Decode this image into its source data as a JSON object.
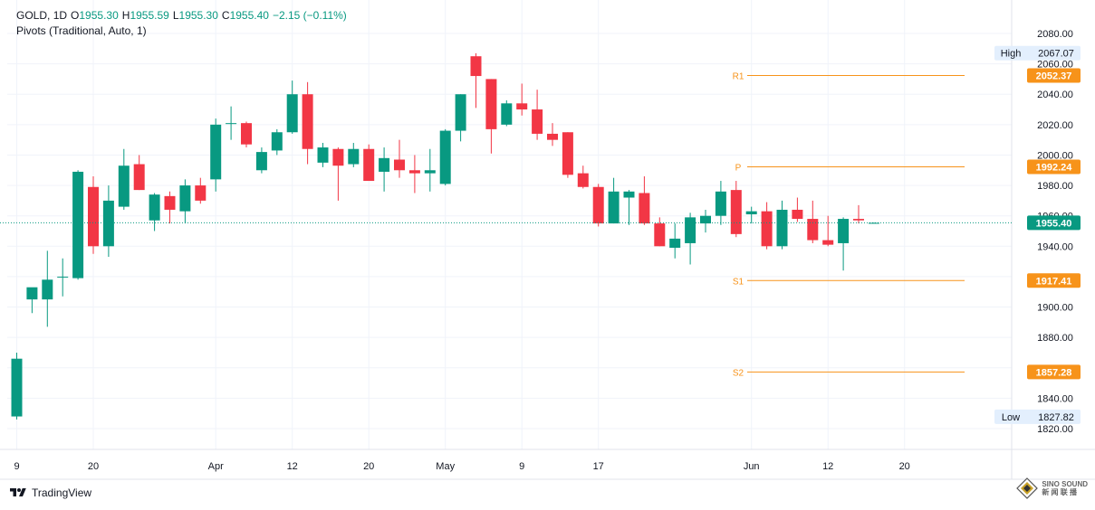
{
  "legend": {
    "symbol": "GOLD",
    "interval": "1D",
    "open_label": "O",
    "open": "1955.30",
    "high_label": "H",
    "high": "1955.59",
    "low_label": "L",
    "low": "1955.30",
    "close_label": "C",
    "close": "1955.40",
    "change": "−2.15 (−0.11%)",
    "indicator": "Pivots (Traditional, Auto, 1)"
  },
  "brand": {
    "name": "TradingView"
  },
  "watermark": {
    "line1": "SINO SOUND",
    "line2": "新 闻 联 播"
  },
  "colors": {
    "up": "#089981",
    "down": "#f23645",
    "pivot": "#f7931a",
    "grid": "#f0f3fa",
    "current_price": "#089981",
    "axis_text": "#131722"
  },
  "chart_data": {
    "type": "candlestick",
    "ylim": [
      1810,
      2090
    ],
    "y_ticks": [
      1820,
      1840,
      1860,
      1880,
      1900,
      1920,
      1940,
      1960,
      1980,
      2000,
      2020,
      2040,
      2060,
      2080
    ],
    "y_tick_labels": [
      "1820.00",
      "1840.00",
      "1860.00",
      "1880.00",
      "1900.00",
      "1920.00",
      "1940.00",
      "1960.00",
      "1980.00",
      "2000.00",
      "2020.00",
      "2040.00",
      "2060.00",
      "2080.00"
    ],
    "x_ticks": [
      {
        "label": "9",
        "index": 0
      },
      {
        "label": "20",
        "index": 5
      },
      {
        "label": "Apr",
        "index": 13
      },
      {
        "label": "12",
        "index": 18
      },
      {
        "label": "20",
        "index": 23
      },
      {
        "label": "May",
        "index": 28
      },
      {
        "label": "9",
        "index": 33
      },
      {
        "label": "17",
        "index": 38
      },
      {
        "label": "Jun",
        "index": 48
      },
      {
        "label": "12",
        "index": 53
      },
      {
        "label": "20",
        "index": 58
      }
    ],
    "candles": [
      {
        "o": 1828,
        "h": 1870,
        "l": 1826,
        "c": 1866
      },
      {
        "o": 1905,
        "h": 1912,
        "l": 1896,
        "c": 1913
      },
      {
        "o": 1905,
        "h": 1937,
        "l": 1887,
        "c": 1918
      },
      {
        "o": 1920,
        "h": 1932,
        "l": 1907,
        "c": 1920
      },
      {
        "o": 1919,
        "h": 1990,
        "l": 1918,
        "c": 1989
      },
      {
        "o": 1979,
        "h": 1986,
        "l": 1935,
        "c": 1940
      },
      {
        "o": 1940,
        "h": 1980,
        "l": 1933,
        "c": 1970
      },
      {
        "o": 1966,
        "h": 2004,
        "l": 1964,
        "c": 1993
      },
      {
        "o": 1994,
        "h": 2000,
        "l": 1977,
        "c": 1977
      },
      {
        "o": 1957,
        "h": 1975,
        "l": 1950,
        "c": 1974
      },
      {
        "o": 1973,
        "h": 1976,
        "l": 1955,
        "c": 1964
      },
      {
        "o": 1963,
        "h": 1984,
        "l": 1955,
        "c": 1980
      },
      {
        "o": 1980,
        "h": 1985,
        "l": 1968,
        "c": 1970
      },
      {
        "o": 1984,
        "h": 2024,
        "l": 1976,
        "c": 2020
      },
      {
        "o": 2021,
        "h": 2032,
        "l": 2010,
        "c": 2021
      },
      {
        "o": 2021,
        "h": 2022,
        "l": 2005,
        "c": 2007
      },
      {
        "o": 1990,
        "h": 2005,
        "l": 1988,
        "c": 2002
      },
      {
        "o": 2003,
        "h": 2017,
        "l": 2000,
        "c": 2015
      },
      {
        "o": 2015,
        "h": 2049,
        "l": 2014,
        "c": 2040
      },
      {
        "o": 2040,
        "h": 2048,
        "l": 1994,
        "c": 2004
      },
      {
        "o": 1995,
        "h": 2008,
        "l": 1992,
        "c": 2005
      },
      {
        "o": 2004,
        "h": 2005,
        "l": 1970,
        "c": 1993
      },
      {
        "o": 1994,
        "h": 2008,
        "l": 1992,
        "c": 2004
      },
      {
        "o": 2004,
        "h": 2007,
        "l": 1983,
        "c": 1983
      },
      {
        "o": 1989,
        "h": 2005,
        "l": 1976,
        "c": 1998
      },
      {
        "o": 1997,
        "h": 2010,
        "l": 1985,
        "c": 1990
      },
      {
        "o": 1990,
        "h": 2000,
        "l": 1975,
        "c": 1988
      },
      {
        "o": 1988,
        "h": 2004,
        "l": 1976,
        "c": 1990
      },
      {
        "o": 1981,
        "h": 2017,
        "l": 1980,
        "c": 2016
      },
      {
        "o": 2016,
        "h": 2040,
        "l": 2009,
        "c": 2040
      },
      {
        "o": 2065,
        "h": 2067,
        "l": 2031,
        "c": 2052
      },
      {
        "o": 2050,
        "h": 2050,
        "l": 2001,
        "c": 2017
      },
      {
        "o": 2020,
        "h": 2036,
        "l": 2019,
        "c": 2034
      },
      {
        "o": 2034,
        "h": 2047,
        "l": 2026,
        "c": 2030
      },
      {
        "o": 2030,
        "h": 2043,
        "l": 2010,
        "c": 2014
      },
      {
        "o": 2014,
        "h": 2021,
        "l": 2006,
        "c": 2010
      },
      {
        "o": 2015,
        "h": 2015,
        "l": 1985,
        "c": 1987
      },
      {
        "o": 1988,
        "h": 1993,
        "l": 1978,
        "c": 1979
      },
      {
        "o": 1979,
        "h": 1981,
        "l": 1953,
        "c": 1955
      },
      {
        "o": 1955,
        "h": 1985,
        "l": 1955,
        "c": 1976
      },
      {
        "o": 1972,
        "h": 1977,
        "l": 1954,
        "c": 1976
      },
      {
        "o": 1975,
        "h": 1986,
        "l": 1954,
        "c": 1955
      },
      {
        "o": 1955,
        "h": 1959,
        "l": 1940,
        "c": 1940
      },
      {
        "o": 1939,
        "h": 1955,
        "l": 1932,
        "c": 1945
      },
      {
        "o": 1942,
        "h": 1962,
        "l": 1928,
        "c": 1959
      },
      {
        "o": 1955,
        "h": 1964,
        "l": 1949,
        "c": 1960
      },
      {
        "o": 1960,
        "h": 1983,
        "l": 1954,
        "c": 1976
      },
      {
        "o": 1977,
        "h": 1983,
        "l": 1946,
        "c": 1948
      },
      {
        "o": 1961,
        "h": 1966,
        "l": 1955,
        "c": 1963
      },
      {
        "o": 1963,
        "h": 1969,
        "l": 1938,
        "c": 1940
      },
      {
        "o": 1940,
        "h": 1970,
        "l": 1938,
        "c": 1964
      },
      {
        "o": 1964,
        "h": 1972,
        "l": 1956,
        "c": 1958
      },
      {
        "o": 1958,
        "h": 1970,
        "l": 1942,
        "c": 1944
      },
      {
        "o": 1944,
        "h": 1960,
        "l": 1940,
        "c": 1941
      },
      {
        "o": 1942,
        "h": 1959,
        "l": 1924,
        "c": 1958
      },
      {
        "o": 1958,
        "h": 1967,
        "l": 1955,
        "c": 1957
      },
      {
        "o": 1955.3,
        "h": 1955.59,
        "l": 1955.3,
        "c": 1955.4
      }
    ],
    "pivots": [
      {
        "label": "R1",
        "value": 2052.37,
        "tag": "2052.37"
      },
      {
        "label": "P",
        "value": 1992.24,
        "tag": "1992.24"
      },
      {
        "label": "S1",
        "value": 1917.41,
        "tag": "1917.41"
      },
      {
        "label": "S2",
        "value": 1857.28,
        "tag": "1857.28"
      }
    ],
    "high_marker": {
      "label": "High",
      "value": 2067.07,
      "tag": "2067.07"
    },
    "low_marker": {
      "label": "Low",
      "value": 1827.82,
      "tag": "1827.82"
    },
    "current_price": {
      "value": 1955.4,
      "tag": "1955.40"
    }
  }
}
